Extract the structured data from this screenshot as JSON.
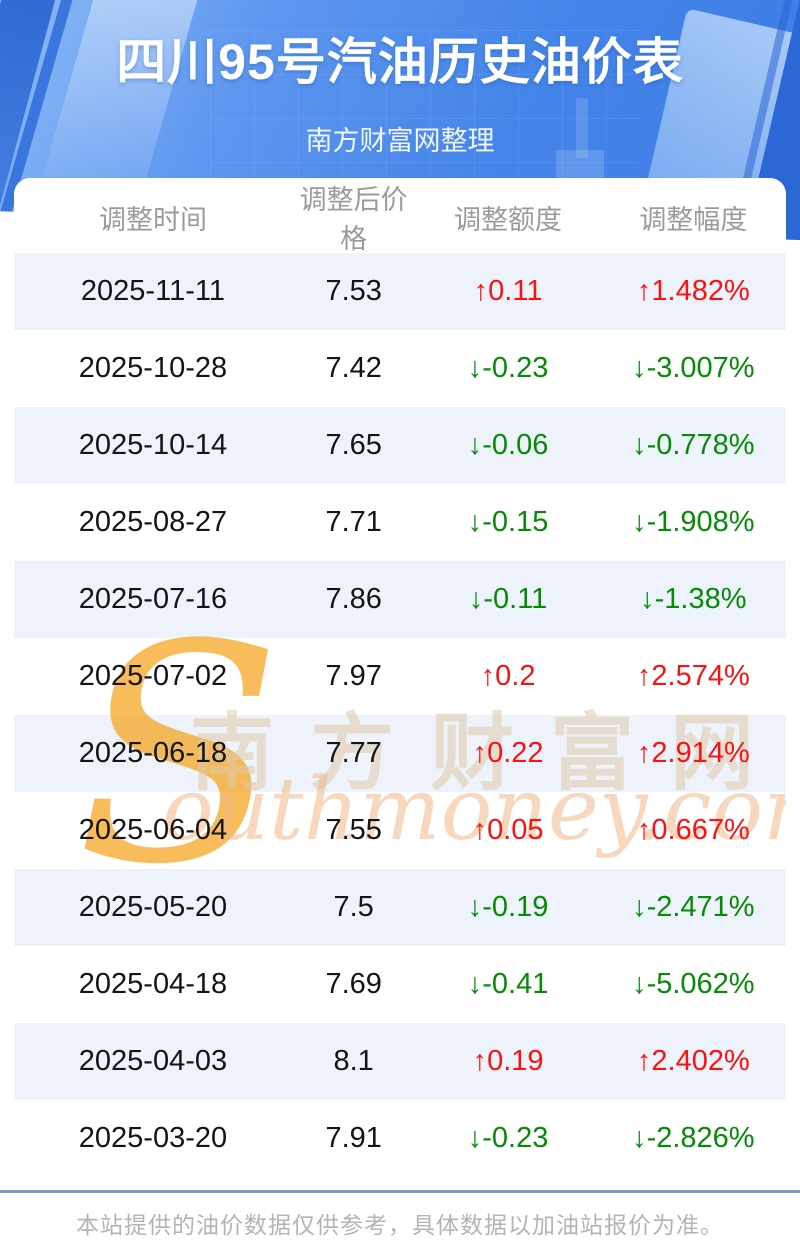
{
  "header": {
    "title": "四川95号汽油历史油价表",
    "subtitle": "南方财富网整理"
  },
  "chart_data": {
    "type": "table",
    "title": "四川95号汽油历史油价表",
    "columns": [
      "调整时间",
      "调整后价格",
      "调整额度",
      "调整幅度"
    ],
    "rows": [
      {
        "date": "2025-11-11",
        "price": "7.53",
        "change": "↑0.11",
        "percent": "↑1.482%",
        "trend": "up"
      },
      {
        "date": "2025-10-28",
        "price": "7.42",
        "change": "↓-0.23",
        "percent": "↓-3.007%",
        "trend": "down"
      },
      {
        "date": "2025-10-14",
        "price": "7.65",
        "change": "↓-0.06",
        "percent": "↓-0.778%",
        "trend": "down"
      },
      {
        "date": "2025-08-27",
        "price": "7.71",
        "change": "↓-0.15",
        "percent": "↓-1.908%",
        "trend": "down"
      },
      {
        "date": "2025-07-16",
        "price": "7.86",
        "change": "↓-0.11",
        "percent": "↓-1.38%",
        "trend": "down"
      },
      {
        "date": "2025-07-02",
        "price": "7.97",
        "change": "↑0.2",
        "percent": "↑2.574%",
        "trend": "up"
      },
      {
        "date": "2025-06-18",
        "price": "7.77",
        "change": "↑0.22",
        "percent": "↑2.914%",
        "trend": "up"
      },
      {
        "date": "2025-06-04",
        "price": "7.55",
        "change": "↑0.05",
        "percent": "↑0.667%",
        "trend": "up"
      },
      {
        "date": "2025-05-20",
        "price": "7.5",
        "change": "↓-0.19",
        "percent": "↓-2.471%",
        "trend": "down"
      },
      {
        "date": "2025-04-18",
        "price": "7.69",
        "change": "↓-0.41",
        "percent": "↓-5.062%",
        "trend": "down"
      },
      {
        "date": "2025-04-03",
        "price": "8.1",
        "change": "↑0.19",
        "percent": "↑2.402%",
        "trend": "up"
      },
      {
        "date": "2025-03-20",
        "price": "7.91",
        "change": "↓-0.23",
        "percent": "↓-2.826%",
        "trend": "down"
      }
    ]
  },
  "watermark": {
    "s": "S",
    "cn": "南方财富网",
    "en": "outhmoney.com"
  },
  "footer": {
    "note": "本站提供的油价数据仅供参考，具体数据以加油站报价为准。"
  },
  "colors": {
    "up": "#fb1210",
    "down": "#068b06",
    "row_alt": "#eef3fb",
    "banner_blue": "#4585e9",
    "divider": "#7f9cc0"
  }
}
